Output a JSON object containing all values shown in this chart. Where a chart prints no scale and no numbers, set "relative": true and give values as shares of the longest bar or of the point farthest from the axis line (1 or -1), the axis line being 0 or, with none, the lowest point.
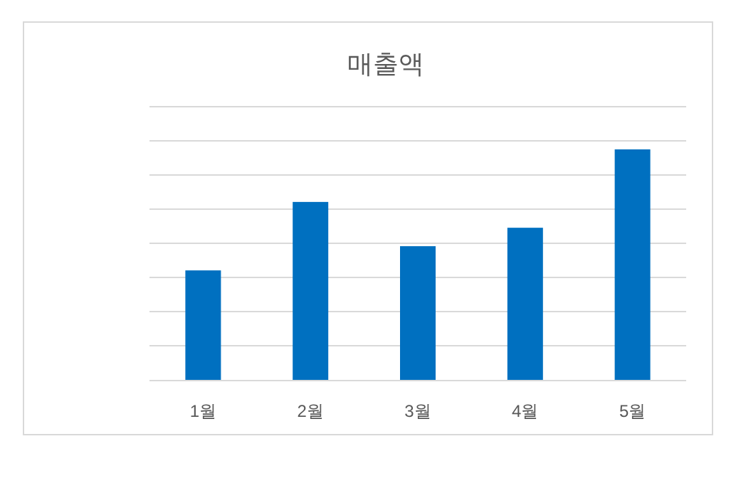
{
  "chart_data": {
    "type": "bar",
    "title": "매출액",
    "categories": [
      "1월",
      "2월",
      "3월",
      "4월",
      "5월"
    ],
    "values": [
      0.475,
      0.772,
      0.58,
      0.66,
      1.0
    ],
    "color": "#0070c0",
    "relative": true,
    "grid": "y"
  }
}
